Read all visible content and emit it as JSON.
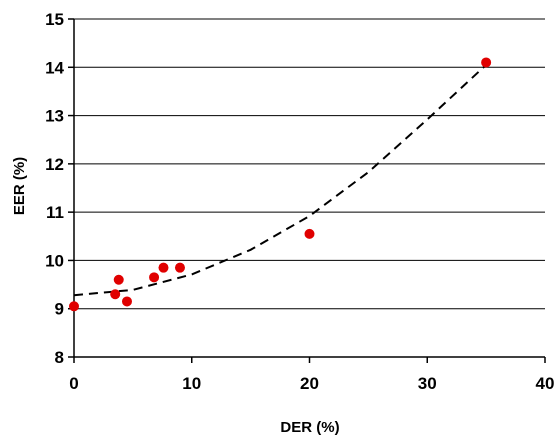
{
  "chart_data": {
    "type": "scatter",
    "title": "",
    "xlabel": "DER (%)",
    "ylabel": "EER (%)",
    "xlim": [
      0,
      40
    ],
    "ylim": [
      8,
      15
    ],
    "xticks": [
      "0",
      "10",
      "20",
      "30",
      "40"
    ],
    "yticks": [
      "8",
      "9",
      "10",
      "11",
      "12",
      "13",
      "14",
      "15"
    ],
    "grid": "horizontal",
    "legend": "none",
    "series": [
      {
        "kind": "scatter",
        "color": "#e00000",
        "points": [
          {
            "x": 0.0,
            "y": 9.05
          },
          {
            "x": 3.5,
            "y": 9.3
          },
          {
            "x": 3.8,
            "y": 9.6
          },
          {
            "x": 4.5,
            "y": 9.15
          },
          {
            "x": 6.8,
            "y": 9.65
          },
          {
            "x": 7.6,
            "y": 9.85
          },
          {
            "x": 9.0,
            "y": 9.85
          },
          {
            "x": 20.0,
            "y": 10.55
          },
          {
            "x": 35.0,
            "y": 14.1
          }
        ]
      },
      {
        "kind": "trendline",
        "style": "dashed",
        "color": "#000000",
        "points": [
          {
            "x": 0,
            "y": 9.28
          },
          {
            "x": 5,
            "y": 9.39
          },
          {
            "x": 10,
            "y": 9.71
          },
          {
            "x": 15,
            "y": 10.22
          },
          {
            "x": 20,
            "y": 10.92
          },
          {
            "x": 25,
            "y": 11.83
          },
          {
            "x": 30,
            "y": 12.92
          },
          {
            "x": 35,
            "y": 14.05
          }
        ]
      }
    ]
  }
}
